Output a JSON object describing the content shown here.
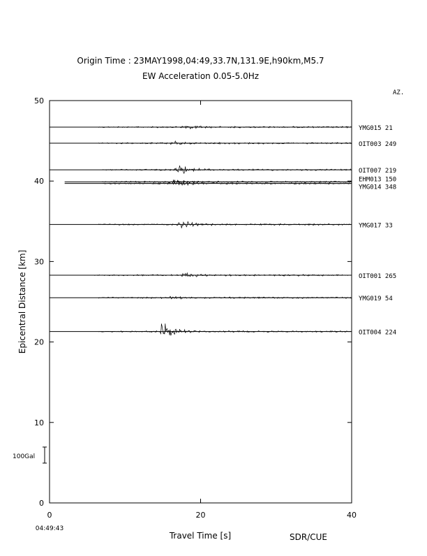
{
  "chart_data": {
    "type": "line",
    "title": "Origin Time : 23MAY1998,04:49,33.7N,131.9E,h90km,M5.7",
    "subtitle": "EW Acceleration 0.05-5.0Hz",
    "xlabel": "Travel Time [s]",
    "ylabel": "Epicentral Distance [km]",
    "xlim": [
      0,
      40
    ],
    "ylim": [
      0,
      50
    ],
    "x_ticks": [
      "0",
      "20",
      "40"
    ],
    "y_ticks": [
      "0",
      "10",
      "20",
      "30",
      "40",
      "50"
    ],
    "x_tick_values": [
      0,
      20,
      40
    ],
    "y_tick_values": [
      0,
      10,
      20,
      30,
      40,
      50
    ],
    "start_time_label": "04:49:43",
    "az_header": "AZ.",
    "scale_label": "100Gal",
    "credit": "SDR/CUE",
    "traces": [
      {
        "station": "YMG015",
        "az": "21",
        "distance": 46.7,
        "onset": 6.5,
        "arrival": 17.5,
        "peak": 5,
        "start": 0
      },
      {
        "station": "OIT003",
        "az": "249",
        "distance": 44.7,
        "onset": 6.5,
        "arrival": 16.0,
        "peak": 4,
        "start": 0
      },
      {
        "station": "OIT007",
        "az": "219",
        "distance": 41.4,
        "onset": 7.0,
        "arrival": 16.5,
        "peak": 15,
        "start": 0
      },
      {
        "station": "EHM013",
        "az": "150",
        "distance": 39.9,
        "onset": 7.0,
        "arrival": 16.0,
        "peak": 4,
        "start": 2.0
      },
      {
        "station": "YMG014",
        "az": "348",
        "distance": 39.7,
        "onset": 7.0,
        "arrival": 16.5,
        "peak": 8,
        "start": 2.0
      },
      {
        "station": "YMG017",
        "az": "33",
        "distance": 34.6,
        "onset": 6.5,
        "arrival": 17.0,
        "peak": 9,
        "start": 0
      },
      {
        "station": "OIT001",
        "az": "265",
        "distance": 28.3,
        "onset": 6.0,
        "arrival": 17.5,
        "peak": 6,
        "start": 0
      },
      {
        "station": "YMG019",
        "az": "54",
        "distance": 25.5,
        "onset": 6.5,
        "arrival": 15.5,
        "peak": 3,
        "start": 0
      },
      {
        "station": "OIT004",
        "az": "224",
        "distance": 21.3,
        "onset": 6.5,
        "arrival": 14.5,
        "peak": 24,
        "start": 0
      }
    ]
  }
}
